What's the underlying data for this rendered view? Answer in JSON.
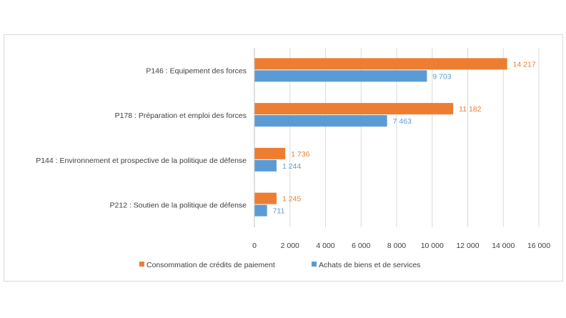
{
  "chart_data": {
    "type": "bar",
    "orientation": "horizontal",
    "categories": [
      "P146 : Equipement des forces",
      "P178 : Préparation et emploi des forces",
      "P144 : Environnement et prospective de la politique de défense",
      "P212 : Soutien de la politique de défense"
    ],
    "series": [
      {
        "name": "Consommation de crédits de paiement",
        "color": "#ed7d31",
        "values": [
          14217,
          11182,
          1736,
          1245
        ],
        "labels": [
          "14 217",
          "11 182",
          "1 736",
          "1 245"
        ]
      },
      {
        "name": "Achats de biens et de services",
        "color": "#5b9bd5",
        "values": [
          9703,
          7463,
          1244,
          711
        ],
        "labels": [
          "9 703",
          "7 463",
          "1 244",
          "711"
        ]
      }
    ],
    "xlim": [
      0,
      16000
    ],
    "xticks": [
      0,
      2000,
      4000,
      6000,
      8000,
      10000,
      12000,
      14000,
      16000
    ],
    "xtick_labels": [
      "0",
      "2 000",
      "4 000",
      "6 000",
      "8 000",
      "10 000",
      "12 000",
      "14 000",
      "16 000"
    ],
    "gridlines": true,
    "legend_position": "bottom"
  }
}
